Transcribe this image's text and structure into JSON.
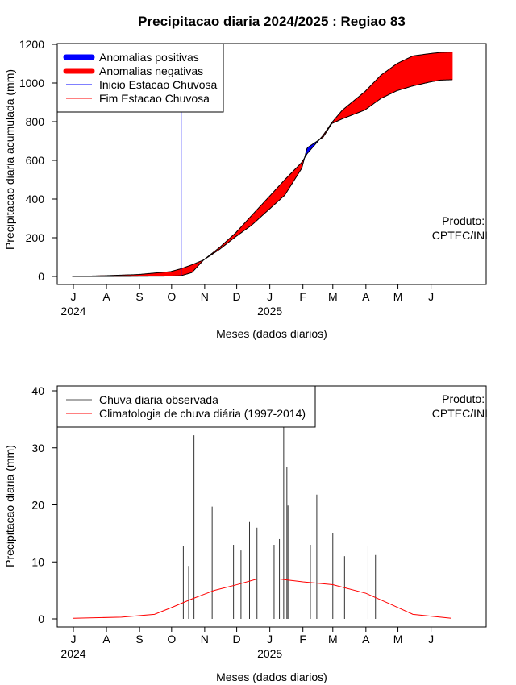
{
  "chart_data": [
    {
      "type": "area",
      "title": "Precipitacao diaria 2024/2025 : Regiao 83",
      "xlabel": "Meses (dados diarios)",
      "ylabel": "Precipitacao diaria acumulada (mm)",
      "ylim": [
        0,
        1200
      ],
      "yticks": [
        0,
        200,
        400,
        600,
        800,
        1000,
        1200
      ],
      "xticks": [
        "J",
        "A",
        "S",
        "O",
        "N",
        "D",
        "J",
        "F",
        "M",
        "A",
        "M",
        "J"
      ],
      "year_labels": [
        "2024",
        "2025"
      ],
      "legend": {
        "position": "top-left",
        "entries": [
          {
            "label": "Anomalias positivas",
            "color": "#0000ff"
          },
          {
            "label": "Anomalias negativas",
            "color": "#ff0000"
          },
          {
            "label": "Inicio Estacao Chuvosa",
            "color": "#0000ff"
          },
          {
            "label": "Fim Estacao Chuvosa",
            "color": "#ff0000"
          }
        ]
      },
      "note": "Produto:\nCPTEC/INI",
      "rainy_season_start": "2024-10-10",
      "observed_cumulative": [
        {
          "date": "2024-06-30",
          "mm": 0
        },
        {
          "date": "2024-07-31",
          "mm": 0
        },
        {
          "date": "2024-08-31",
          "mm": 1
        },
        {
          "date": "2024-09-30",
          "mm": 2
        },
        {
          "date": "2024-10-10",
          "mm": 4
        },
        {
          "date": "2024-10-20",
          "mm": 20
        },
        {
          "date": "2024-10-31",
          "mm": 85
        },
        {
          "date": "2024-11-15",
          "mm": 140
        },
        {
          "date": "2024-11-30",
          "mm": 205
        },
        {
          "date": "2024-12-15",
          "mm": 265
        },
        {
          "date": "2024-12-31",
          "mm": 345
        },
        {
          "date": "2025-01-15",
          "mm": 420
        },
        {
          "date": "2025-01-31",
          "mm": 560
        },
        {
          "date": "2025-02-05",
          "mm": 665
        },
        {
          "date": "2025-02-20",
          "mm": 720
        },
        {
          "date": "2025-02-28",
          "mm": 790
        },
        {
          "date": "2025-03-10",
          "mm": 815
        },
        {
          "date": "2025-03-31",
          "mm": 860
        },
        {
          "date": "2025-04-15",
          "mm": 920
        },
        {
          "date": "2025-04-30",
          "mm": 960
        },
        {
          "date": "2025-05-15",
          "mm": 985
        },
        {
          "date": "2025-05-31",
          "mm": 1005
        },
        {
          "date": "2025-06-10",
          "mm": 1015
        },
        {
          "date": "2025-06-21",
          "mm": 1017
        }
      ],
      "climatology_cumulative": [
        {
          "date": "2024-06-30",
          "mm": 0
        },
        {
          "date": "2024-07-31",
          "mm": 4
        },
        {
          "date": "2024-08-31",
          "mm": 10
        },
        {
          "date": "2024-09-30",
          "mm": 25
        },
        {
          "date": "2024-10-10",
          "mm": 40
        },
        {
          "date": "2024-10-20",
          "mm": 60
        },
        {
          "date": "2024-10-31",
          "mm": 85
        },
        {
          "date": "2024-11-15",
          "mm": 150
        },
        {
          "date": "2024-11-30",
          "mm": 225
        },
        {
          "date": "2024-12-15",
          "mm": 315
        },
        {
          "date": "2024-12-31",
          "mm": 410
        },
        {
          "date": "2025-01-15",
          "mm": 500
        },
        {
          "date": "2025-01-31",
          "mm": 590
        },
        {
          "date": "2025-02-05",
          "mm": 635
        },
        {
          "date": "2025-02-20",
          "mm": 730
        },
        {
          "date": "2025-02-28",
          "mm": 795
        },
        {
          "date": "2025-03-10",
          "mm": 860
        },
        {
          "date": "2025-03-31",
          "mm": 955
        },
        {
          "date": "2025-04-15",
          "mm": 1040
        },
        {
          "date": "2025-04-30",
          "mm": 1100
        },
        {
          "date": "2025-05-15",
          "mm": 1140
        },
        {
          "date": "2025-05-31",
          "mm": 1152
        },
        {
          "date": "2025-06-10",
          "mm": 1158
        },
        {
          "date": "2025-06-21",
          "mm": 1160
        }
      ]
    },
    {
      "type": "bar",
      "xlabel": "Meses (dados diarios)",
      "ylabel": "Precipitacao diaria (mm)",
      "ylim": [
        0,
        40
      ],
      "yticks": [
        0,
        10,
        20,
        30,
        40
      ],
      "xticks": [
        "J",
        "A",
        "S",
        "O",
        "N",
        "D",
        "J",
        "F",
        "M",
        "A",
        "M",
        "J"
      ],
      "year_labels": [
        "2024",
        "2025"
      ],
      "legend": {
        "position": "top-left",
        "entries": [
          {
            "label": "Chuva diaria observada",
            "color": "#555555"
          },
          {
            "label": "Climatologia de chuva diária (1997-2014)",
            "color": "#ff0000"
          }
        ]
      },
      "note": "Produto:\nCPTEC/INI",
      "observed_daily_peaks": [
        {
          "date": "2024-10-12",
          "mm": 12.8
        },
        {
          "date": "2024-10-17",
          "mm": 9.3
        },
        {
          "date": "2024-10-22",
          "mm": 32.2
        },
        {
          "date": "2024-11-08",
          "mm": 19.7
        },
        {
          "date": "2024-11-28",
          "mm": 13
        },
        {
          "date": "2024-12-05",
          "mm": 12
        },
        {
          "date": "2024-12-13",
          "mm": 17
        },
        {
          "date": "2024-12-20",
          "mm": 16
        },
        {
          "date": "2025-01-05",
          "mm": 13
        },
        {
          "date": "2025-01-10",
          "mm": 14
        },
        {
          "date": "2025-01-14",
          "mm": 35
        },
        {
          "date": "2025-01-17",
          "mm": 26.7
        },
        {
          "date": "2025-01-18",
          "mm": 19.9
        },
        {
          "date": "2025-02-08",
          "mm": 13
        },
        {
          "date": "2025-02-14",
          "mm": 21.8
        },
        {
          "date": "2025-03-01",
          "mm": 15
        },
        {
          "date": "2025-03-12",
          "mm": 11
        },
        {
          "date": "2025-04-03",
          "mm": 12.9
        },
        {
          "date": "2025-04-10",
          "mm": 11.2
        }
      ],
      "climatology_daily": [
        {
          "date": "2024-07-01",
          "mm": 0.1
        },
        {
          "date": "2024-08-15",
          "mm": 0.3
        },
        {
          "date": "2024-09-15",
          "mm": 0.8
        },
        {
          "date": "2024-10-01",
          "mm": 2
        },
        {
          "date": "2024-10-20",
          "mm": 3.5
        },
        {
          "date": "2024-11-10",
          "mm": 5
        },
        {
          "date": "2024-12-01",
          "mm": 6
        },
        {
          "date": "2024-12-20",
          "mm": 7
        },
        {
          "date": "2025-01-10",
          "mm": 7
        },
        {
          "date": "2025-02-01",
          "mm": 6.5
        },
        {
          "date": "2025-03-01",
          "mm": 6
        },
        {
          "date": "2025-04-01",
          "mm": 4.5
        },
        {
          "date": "2025-04-25",
          "mm": 2.5
        },
        {
          "date": "2025-05-15",
          "mm": 0.8
        },
        {
          "date": "2025-06-20",
          "mm": 0.1
        }
      ]
    }
  ]
}
